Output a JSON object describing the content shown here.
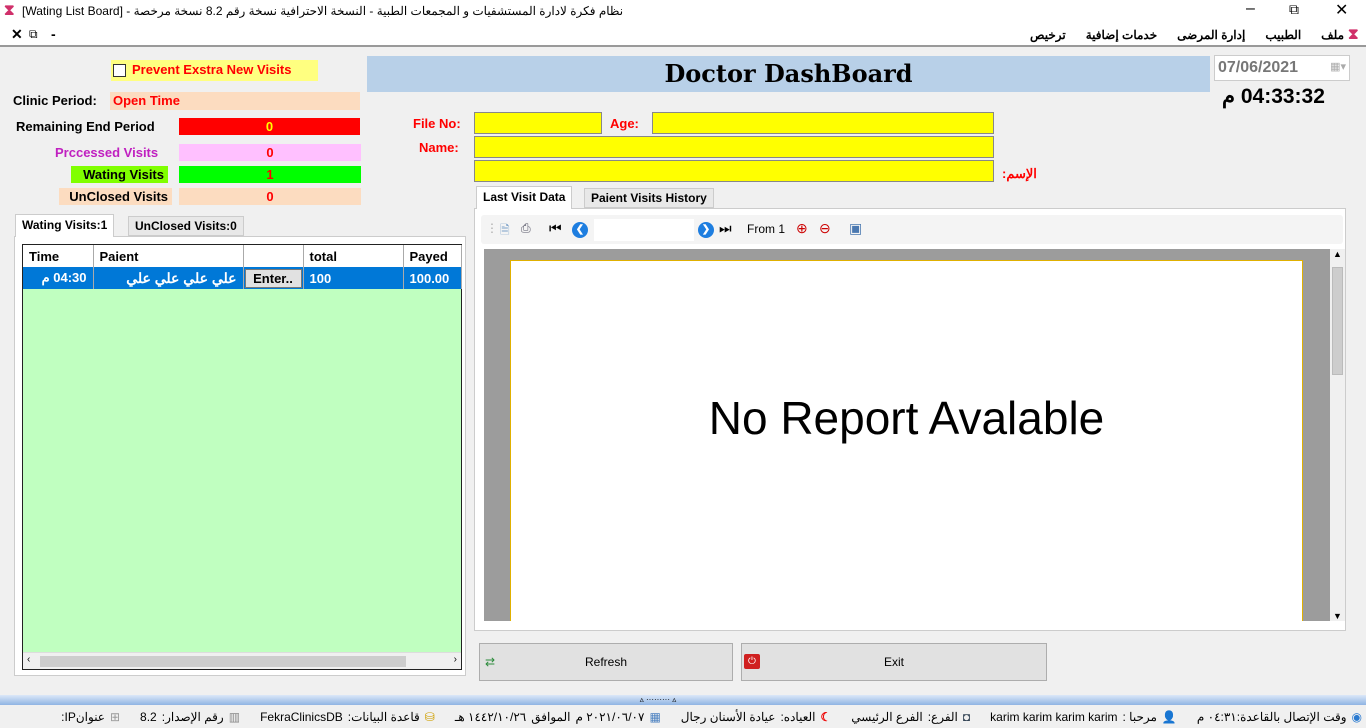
{
  "window": {
    "title": "نظام فكرة لادارة المستشفيات و المجمعات الطبية - النسخة الاحترافية نسخة رقم 8.2 نسخة مرخصة  - [Wating List Board]"
  },
  "menu": {
    "items": [
      "ملف",
      "الطبيب",
      "إدارة المرضى",
      "خدمات إضافية",
      "ترخيص"
    ]
  },
  "left": {
    "prevent_label": "Prevent Exstra New Visits",
    "prevent_checked": false,
    "clinic_period_label": "Clinic Period:",
    "clinic_period_value": "Open Time",
    "remaining_label": "Remaining End Period",
    "remaining_value": "0",
    "processed_label": "Prccessed Visits",
    "processed_value": "0",
    "waiting_label": "Wating Visits",
    "waiting_value": "1",
    "unclosed_label": "UnClosed Visits",
    "unclosed_value": "0",
    "tabs": [
      "Wating Visits:1",
      "UnClosed Visits:0"
    ],
    "grid": {
      "columns": [
        "Time",
        "Paient",
        "",
        "total",
        "Payed"
      ],
      "rows": [
        {
          "time": "04:30 م",
          "patient": "علي علي علي علي",
          "action": "Enter..",
          "total": "100",
          "payed": "100.00"
        }
      ]
    }
  },
  "header": {
    "title": "Doctor DashBoard",
    "date": "07/06/2021",
    "time": "04:33:32 م"
  },
  "patient": {
    "file_no_label": "File No:",
    "age_label": "Age:",
    "name_label": "Name:",
    "arabic_name_label": "الإسم:",
    "file_no": "",
    "age": "",
    "name": "",
    "arabic_name": ""
  },
  "report": {
    "tabs": [
      "Last Visit Data",
      "Paient Visits History"
    ],
    "page_input": "",
    "page_info": "From 1",
    "message": "No Report Avalable"
  },
  "buttons": {
    "refresh": "Refresh",
    "exit": "Exit"
  },
  "status": {
    "connection": "وقت الإتصال بالقاعدة:٠٤:٣١ م",
    "welcome": "مرحبا :",
    "user": "karim karim karim karim",
    "branch_label": "الفرع:",
    "branch": "الفرع الرئيسي",
    "clinic_label": "العياده:",
    "clinic": "عيادة الأسنان رجال",
    "date": "٢٠٢١/٠٦/٠٧ م",
    "hijri_label": "الموافق",
    "hijri": "١٤٤٢/١٠/٢٦ هـ",
    "db_label": "قاعدة البيانات:",
    "db": "FekraClinicsDB",
    "version_label": "رقم الإصدار:",
    "version": "8.2",
    "ip_label": "عنوانIP:"
  }
}
